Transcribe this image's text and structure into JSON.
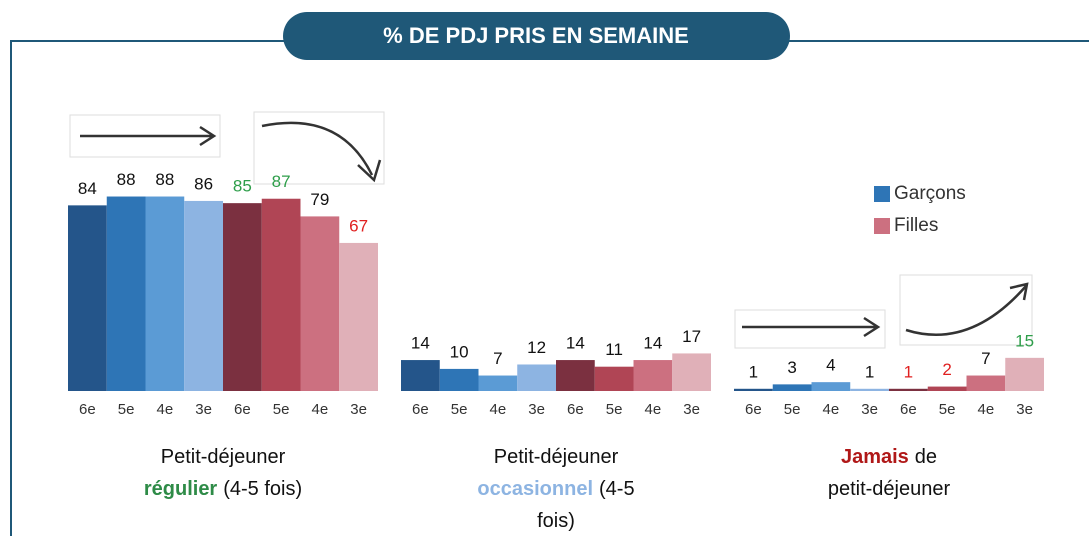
{
  "chart_data": {
    "type": "bar",
    "title": "% DE PDJ PRIS EN SEMAINE",
    "ylim": [
      0,
      100
    ],
    "legend": "right",
    "series": [
      {
        "name": "Garçons",
        "color": "#2e75b6"
      },
      {
        "name": "Filles",
        "color": "#cc7080"
      }
    ],
    "groups": [
      {
        "categories": [
          "6e",
          "5e",
          "4e",
          "3e",
          "6e",
          "5e",
          "4e",
          "3e"
        ],
        "values": [
          84,
          88,
          88,
          86,
          85,
          87,
          79,
          67
        ],
        "colors": [
          "#24558a",
          "#2e75b6",
          "#5b9bd5",
          "#8db4e2",
          "#7b3040",
          "#b04555",
          "#cc7080",
          "#e0b0b8"
        ],
        "label_colors": [
          "#111111",
          "#111111",
          "#111111",
          "#111111",
          "#2e9e4a",
          "#2e9e4a",
          "#111111",
          "#e02020"
        ],
        "caption": [
          [
            {
              "text": "Petit-déjeuner",
              "color": "#111111",
              "bold": false
            }
          ],
          [
            {
              "text": "régulier",
              "color": "#2e8b47",
              "bold": true
            },
            {
              "text": "(4-5 fois)",
              "color": "#111111",
              "bold": false
            }
          ]
        ]
      },
      {
        "categories": [
          "6e",
          "5e",
          "4e",
          "3e",
          "6e",
          "5e",
          "4e",
          "3e"
        ],
        "values": [
          14,
          10,
          7,
          12,
          14,
          11,
          14,
          17
        ],
        "colors": [
          "#24558a",
          "#2e75b6",
          "#5b9bd5",
          "#8db4e2",
          "#7b3040",
          "#b04555",
          "#cc7080",
          "#e0b0b8"
        ],
        "label_colors": [
          "#111111",
          "#111111",
          "#111111",
          "#111111",
          "#111111",
          "#111111",
          "#111111",
          "#111111"
        ],
        "caption": [
          [
            {
              "text": "Petit-déjeuner",
              "color": "#111111",
              "bold": false
            }
          ],
          [
            {
              "text": "occasionnel",
              "color": "#8db4e2",
              "bold": true
            },
            {
              "text": "(4-5",
              "color": "#111111",
              "bold": false
            }
          ],
          [
            {
              "text": "fois)",
              "color": "#111111",
              "bold": false
            }
          ]
        ]
      },
      {
        "categories": [
          "6e",
          "5e",
          "4e",
          "3e",
          "6e",
          "5e",
          "4e",
          "3e"
        ],
        "values": [
          1,
          3,
          4,
          1,
          1,
          2,
          7,
          15
        ],
        "colors": [
          "#24558a",
          "#2e75b6",
          "#5b9bd5",
          "#8db4e2",
          "#7b3040",
          "#b04555",
          "#cc7080",
          "#e0b0b8"
        ],
        "label_colors": [
          "#111111",
          "#111111",
          "#111111",
          "#111111",
          "#e02020",
          "#e02020",
          "#111111",
          "#2e9e4a"
        ],
        "caption": [
          [
            {
              "text": "Jamais",
              "color": "#b01818",
              "bold": true
            },
            {
              "text": "de",
              "color": "#111111",
              "bold": false
            }
          ],
          [
            {
              "text": "petit-déjeuner",
              "color": "#111111",
              "bold": false
            }
          ]
        ]
      }
    ]
  }
}
